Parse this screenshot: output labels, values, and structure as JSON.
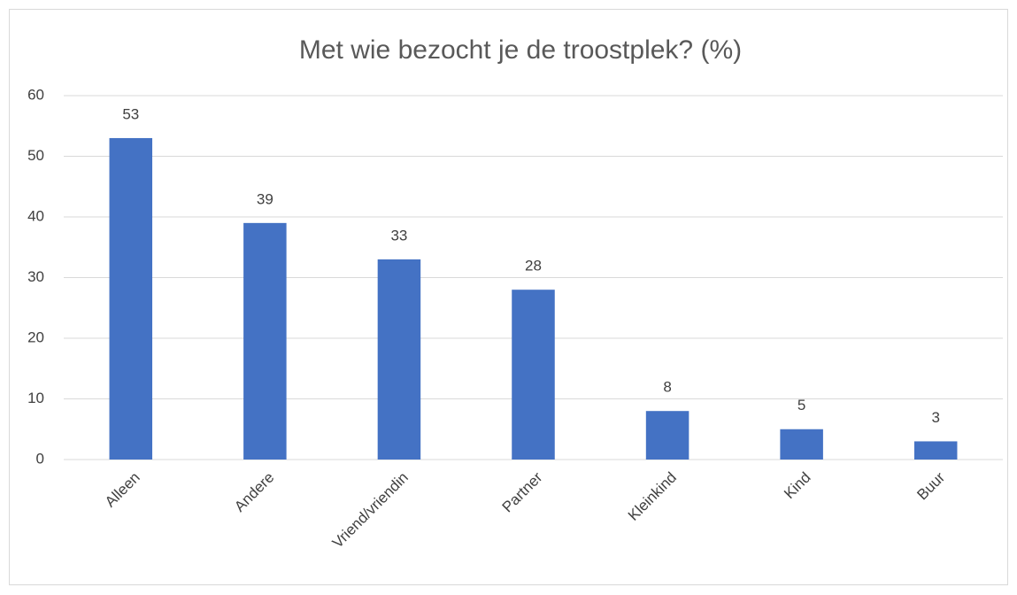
{
  "chart_data": {
    "type": "bar",
    "title": "Met wie bezocht je de troostplek? (%)",
    "categories": [
      "Alleen",
      "Andere",
      "Vriend/vriendin",
      "Partner",
      "Kleinkind",
      "Kind",
      "Buur"
    ],
    "values": [
      53,
      39,
      33,
      28,
      8,
      5,
      3
    ],
    "color": "#4472c4",
    "ylim": [
      0,
      60
    ],
    "yticks": [
      0,
      10,
      20,
      30,
      40,
      50,
      60
    ],
    "grid": true
  }
}
